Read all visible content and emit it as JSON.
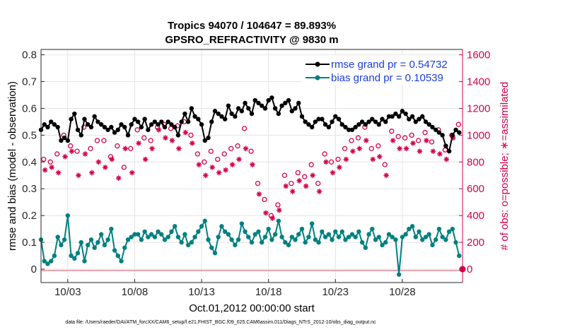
{
  "chart_data": {
    "type": "line",
    "title": "Tropics 94070 / 104647 = 89.893%",
    "subtitle": "GPSRO_REFRACTIVITY @ 9830 m",
    "xlabel": "Oct.01,2012 00:00:00 start",
    "ylabel": "rmse and bias (model - observation)",
    "y2label": "# of obs: o=possible; ∗=assimilated",
    "footnote": "data file: /Users/raeder/DAI/ATM_forcXX/CAM6_setup/f.e21.FHIST_BGC.f09_025.CAM6assim.011/Diags_NTrS_2012-10/obs_diag_output.nc",
    "xlim": [
      1.0,
      32.5
    ],
    "ylim": [
      -0.05,
      0.82
    ],
    "y2lim": [
      -100,
      1640
    ],
    "x_ticks": [
      3,
      8,
      13,
      18,
      23,
      28
    ],
    "x_tick_labels": [
      "10/03",
      "10/08",
      "10/13",
      "10/18",
      "10/23",
      "10/28"
    ],
    "y_ticks": [
      0,
      0.1,
      0.2,
      0.3,
      0.4,
      0.5,
      0.6,
      0.7,
      0.8
    ],
    "y_tick_labels": [
      "0",
      "0.1",
      "0.2",
      "0.3",
      "0.4",
      "0.5",
      "0.6",
      "0.7",
      "0.8"
    ],
    "y2_ticks": [
      0,
      200,
      400,
      600,
      800,
      1000,
      1200,
      1400,
      1600
    ],
    "y2_tick_labels": [
      "0",
      "200",
      "400",
      "600",
      "800",
      "1000",
      "1200",
      "1400",
      "1600"
    ],
    "x": [
      1.0,
      1.25,
      1.5,
      1.75,
      2.0,
      2.25,
      2.5,
      2.75,
      3.0,
      3.25,
      3.5,
      3.75,
      4.0,
      4.25,
      4.5,
      4.75,
      5.0,
      5.25,
      5.5,
      5.75,
      6.0,
      6.25,
      6.5,
      6.75,
      7.0,
      7.25,
      7.5,
      7.75,
      8.0,
      8.25,
      8.5,
      8.75,
      9.0,
      9.25,
      9.5,
      9.75,
      10.0,
      10.25,
      10.5,
      10.75,
      11.0,
      11.25,
      11.5,
      11.75,
      12.0,
      12.25,
      12.5,
      12.75,
      13.0,
      13.25,
      13.5,
      13.75,
      14.0,
      14.25,
      14.5,
      14.75,
      15.0,
      15.25,
      15.5,
      15.75,
      16.0,
      16.25,
      16.5,
      16.75,
      17.0,
      17.25,
      17.5,
      17.75,
      18.0,
      18.25,
      18.5,
      18.75,
      19.0,
      19.25,
      19.5,
      19.75,
      20.0,
      20.25,
      20.5,
      20.75,
      21.0,
      21.25,
      21.5,
      21.75,
      22.0,
      22.25,
      22.5,
      22.75,
      23.0,
      23.25,
      23.5,
      23.75,
      24.0,
      24.25,
      24.5,
      24.75,
      25.0,
      25.25,
      25.5,
      25.75,
      26.0,
      26.25,
      26.5,
      26.75,
      27.0,
      27.25,
      27.5,
      27.75,
      28.0,
      28.25,
      28.5,
      28.75,
      29.0,
      29.25,
      29.5,
      29.75,
      30.0,
      30.25,
      30.5,
      30.75,
      31.0,
      31.25,
      31.5,
      31.75,
      32.0,
      32.25
    ],
    "series": [
      {
        "name": "rmse grand pr = 0.54732",
        "color": "#000000",
        "marker": "dot",
        "values": [
          0.52,
          0.54,
          0.53,
          0.55,
          0.54,
          0.53,
          0.48,
          0.49,
          0.48,
          0.56,
          0.58,
          0.52,
          0.5,
          0.56,
          0.54,
          0.53,
          0.57,
          0.55,
          0.54,
          0.53,
          0.52,
          0.53,
          0.51,
          0.52,
          0.54,
          0.53,
          0.5,
          0.54,
          0.56,
          0.55,
          0.53,
          0.56,
          0.52,
          0.54,
          0.55,
          0.54,
          0.55,
          0.53,
          0.55,
          0.54,
          0.53,
          0.5,
          0.55,
          0.58,
          0.55,
          0.6,
          0.57,
          0.56,
          0.54,
          0.48,
          0.49,
          0.55,
          0.59,
          0.58,
          0.57,
          0.56,
          0.61,
          0.58,
          0.57,
          0.6,
          0.59,
          0.62,
          0.6,
          0.58,
          0.63,
          0.62,
          0.61,
          0.6,
          0.63,
          0.64,
          0.6,
          0.58,
          0.61,
          0.62,
          0.63,
          0.59,
          0.6,
          0.62,
          0.57,
          0.55,
          0.54,
          0.53,
          0.55,
          0.56,
          0.56,
          0.54,
          0.53,
          0.55,
          0.57,
          0.56,
          0.54,
          0.53,
          0.52,
          0.52,
          0.53,
          0.54,
          0.55,
          0.54,
          0.55,
          0.56,
          0.55,
          0.54,
          0.56,
          0.55,
          0.57,
          0.57,
          0.58,
          0.57,
          0.59,
          0.58,
          0.56,
          0.57,
          0.55,
          0.56,
          0.57,
          0.55,
          0.54,
          0.53,
          0.52,
          0.51,
          0.5,
          0.46,
          0.44,
          0.5,
          0.52,
          0.51
        ]
      },
      {
        "name": "bias grand pr = 0.10539",
        "color": "#008080",
        "marker": "dot",
        "values": [
          0.11,
          0.03,
          0.02,
          0.03,
          0.05,
          0.12,
          0.09,
          0.11,
          0.2,
          0.05,
          0.04,
          0.06,
          0.1,
          0.03,
          0.09,
          0.11,
          0.08,
          0.1,
          0.13,
          0.09,
          0.11,
          0.15,
          0.07,
          0.05,
          0.03,
          0.08,
          0.11,
          0.12,
          0.13,
          0.13,
          0.11,
          0.14,
          0.12,
          0.13,
          0.12,
          0.14,
          0.13,
          0.11,
          0.12,
          0.14,
          0.16,
          0.12,
          0.1,
          0.13,
          0.09,
          0.1,
          0.12,
          0.14,
          0.16,
          0.18,
          0.11,
          0.08,
          0.06,
          0.12,
          0.16,
          0.14,
          0.13,
          0.11,
          0.09,
          0.11,
          0.17,
          0.14,
          0.12,
          0.1,
          0.13,
          0.14,
          0.1,
          0.12,
          0.15,
          0.11,
          0.13,
          0.18,
          0.12,
          0.1,
          0.09,
          0.12,
          0.11,
          0.13,
          0.15,
          0.1,
          0.12,
          0.17,
          0.11,
          0.1,
          0.14,
          0.12,
          0.13,
          0.11,
          0.14,
          0.12,
          0.14,
          0.11,
          0.12,
          0.13,
          0.12,
          0.14,
          0.1,
          0.08,
          0.13,
          0.15,
          0.11,
          0.12,
          0.09,
          0.1,
          0.13,
          0.12,
          0.11,
          -0.02,
          0.12,
          0.13,
          0.15,
          0.16,
          0.12,
          0.14,
          0.11,
          0.12,
          0.13,
          0.09,
          0.11,
          0.15,
          0.12,
          0.11,
          0.14,
          0.15,
          0.1,
          0.05
        ]
      }
    ],
    "obs_possible": {
      "name": "# of obs possible",
      "color": "#d6004c",
      "marker": "circle",
      "x": [
        1.2,
        1.7,
        2.2,
        2.7,
        3.2,
        3.7,
        4.2,
        4.7,
        5.2,
        5.7,
        6.2,
        6.7,
        7.2,
        7.7,
        8.2,
        8.7,
        9.2,
        9.7,
        10.2,
        10.7,
        11.2,
        11.7,
        12.2,
        12.7,
        13.2,
        13.7,
        14.2,
        14.7,
        15.2,
        15.7,
        16.2,
        16.7,
        17.2,
        17.7,
        18.2,
        18.7,
        19.2,
        19.7,
        20.2,
        20.7,
        21.2,
        21.7,
        22.2,
        22.7,
        23.2,
        23.7,
        24.2,
        24.7,
        25.2,
        25.7,
        26.2,
        26.7,
        27.2,
        27.7,
        28.2,
        28.7,
        29.2,
        29.7,
        30.2,
        30.7,
        31.2,
        31.7,
        32.2
      ],
      "values": [
        820,
        800,
        860,
        1000,
        920,
        880,
        1060,
        900,
        960,
        960,
        840,
        920,
        760,
        900,
        1040,
        980,
        960,
        1060,
        1080,
        1050,
        1070,
        1100,
        1000,
        860,
        800,
        880,
        820,
        860,
        900,
        920,
        1050,
        880,
        640,
        520,
        400,
        480,
        700,
        640,
        720,
        690,
        780,
        640,
        860,
        800,
        820,
        900,
        960,
        980,
        1060,
        900,
        920,
        780,
        1030,
        990,
        980,
        1000,
        960,
        1020,
        950,
        1040,
        890,
        1000,
        1080
      ]
    },
    "obs_assimilated": {
      "name": "# of obs assimilated",
      "color": "#d6004c",
      "marker": "asterisk",
      "x": [
        1.3,
        1.8,
        2.3,
        2.8,
        3.3,
        3.8,
        4.3,
        4.8,
        5.3,
        5.8,
        6.3,
        6.8,
        7.3,
        7.8,
        8.3,
        8.8,
        9.3,
        9.8,
        10.3,
        10.8,
        11.3,
        11.8,
        12.3,
        12.8,
        13.3,
        13.8,
        14.3,
        14.8,
        15.3,
        15.8,
        16.3,
        16.8,
        17.3,
        17.8,
        18.3,
        18.8,
        19.3,
        19.8,
        20.3,
        20.8,
        21.3,
        21.8,
        22.3,
        22.8,
        23.3,
        23.8,
        24.3,
        24.8,
        25.3,
        25.8,
        26.3,
        26.8,
        27.3,
        27.8,
        28.3,
        28.8,
        29.3,
        29.8,
        30.3,
        30.8,
        31.3,
        31.8
      ],
      "values": [
        740,
        760,
        720,
        840,
        880,
        700,
        860,
        720,
        800,
        760,
        820,
        680,
        900,
        720,
        940,
        820,
        900,
        1040,
        980,
        960,
        900,
        1020,
        940,
        780,
        700,
        760,
        720,
        740,
        780,
        820,
        900,
        780,
        560,
        420,
        380,
        440,
        620,
        580,
        660,
        620,
        700,
        580,
        800,
        720,
        760,
        820,
        880,
        900,
        960,
        820,
        840,
        700,
        960,
        900,
        900,
        940,
        880,
        960,
        880,
        860,
        820,
        980
      ]
    }
  }
}
